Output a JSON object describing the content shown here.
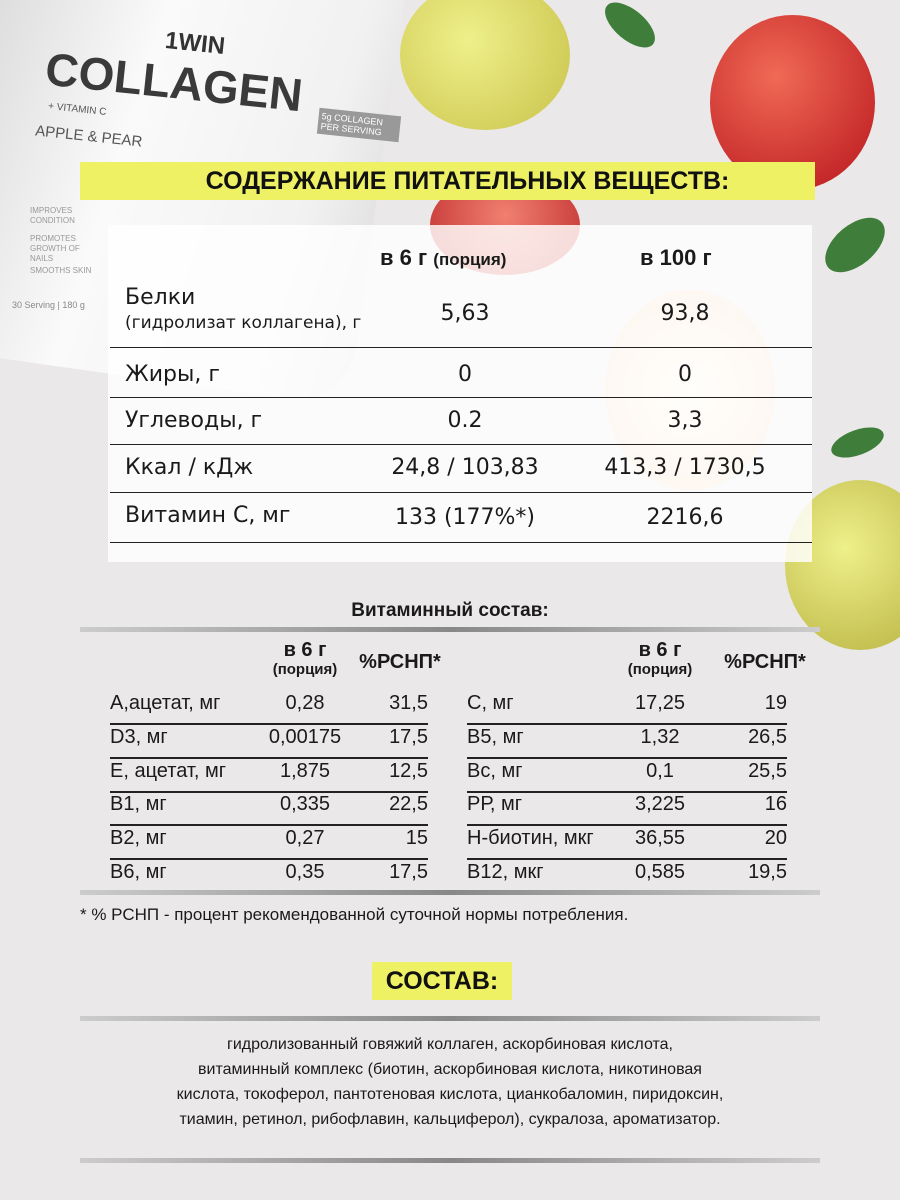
{
  "product": {
    "brand": "1WIN",
    "name": "COLLAGEN",
    "sub": "+ VITAMIN C",
    "flavor": "APPLE & PEAR",
    "badge": "5g COLLAGEN PER SERVING",
    "benefits": [
      "IMPROVES CONDITION",
      "PROMOTES GROWTH OF NAILS",
      "SMOOTHS SKIN"
    ],
    "serving": "30 Serving | 180 g"
  },
  "colors": {
    "accent": "#eef163",
    "background": "#ebe8e9"
  },
  "nutrition": {
    "title": "СОДЕРЖАНИЕ ПИТАТЕЛЬНЫХ ВЕЩЕСТВ:",
    "col1": "в 6 г",
    "col1_note": "(порция)",
    "col2": "в 100 г",
    "rows": [
      {
        "label": "Белки",
        "sublabel": "(гидролизат коллагена), г",
        "v1": "5,63",
        "v2": "93,8"
      },
      {
        "label": "Жиры, г",
        "v1": "0",
        "v2": "0"
      },
      {
        "label": "Углеводы, г",
        "v1": "0.2",
        "v2": "3,3"
      },
      {
        "label": "Ккал / кДж",
        "v1": "24,8 / 103,83",
        "v2": "413,3 / 1730,5"
      },
      {
        "label": "Витамин С, мг",
        "v1": "133 (177%*)",
        "v2": "2216,6"
      }
    ]
  },
  "vitamins": {
    "title": "Витаминный состав:",
    "h1": "в 6 г",
    "h1_note": "(порция)",
    "h2": "%РСНП*",
    "left": [
      [
        "А,ацетат, мг",
        "0,28",
        "31,5"
      ],
      [
        "D3, мг",
        "0,00175",
        "17,5"
      ],
      [
        "Е, ацетат, мг",
        "1,875",
        "12,5"
      ],
      [
        "В1, мг",
        "0,335",
        "22,5"
      ],
      [
        "В2, мг",
        "0,27",
        "15"
      ],
      [
        "В6, мг",
        "0,35",
        "17,5"
      ]
    ],
    "right": [
      [
        "С, мг",
        "17,25",
        "19"
      ],
      [
        "В5, мг",
        "1,32",
        "26,5"
      ],
      [
        "Вс, мг",
        "0,1",
        "25,5"
      ],
      [
        "РР, мг",
        "3,225",
        "16"
      ],
      [
        "Н-биотин, мкг",
        "36,55",
        "20"
      ],
      [
        "В12, мкг",
        "0,585",
        "19,5"
      ]
    ],
    "footnote": "* % РСНП - процент рекомендованной суточной нормы потребления."
  },
  "composition": {
    "title": "СОСТАВ:",
    "lines": [
      "гидролизованный говяжий коллаген, аскорбиновая кислота,",
      "витаминный комплекс (биотин, аскорбиновая кислота, никотиновая",
      "кислота, токоферол, пантотеновая кислота, цианкобаломин, пиридоксин,",
      "тиамин, ретинол, рибофлавин, кальциферол),  сукралоза, ароматизатор."
    ]
  }
}
